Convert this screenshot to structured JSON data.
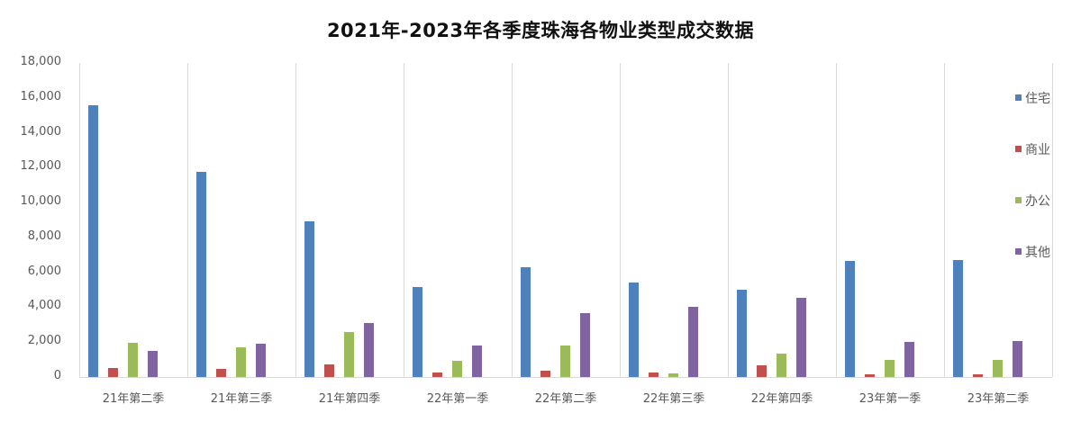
{
  "chart_data": {
    "type": "bar",
    "title": "2021年-2023年各季度珠海各物业类型成交数据",
    "xlabel": "",
    "ylabel": "",
    "ylim": [
      0,
      18000
    ],
    "yticks": [
      0,
      2000,
      4000,
      6000,
      8000,
      10000,
      12000,
      14000,
      16000,
      18000
    ],
    "ytick_labels": [
      "0",
      "2,000",
      "4,000",
      "6,000",
      "8,000",
      "10,000",
      "12,000",
      "14,000",
      "16,000",
      "18,000"
    ],
    "grid": "vertical category separators",
    "legend_position": "right",
    "categories": [
      "21年第二季",
      "21年第三季",
      "21年第四季",
      "22年第一季",
      "22年第二季",
      "22年第三季",
      "22年第四季",
      "23年第一季",
      "23年第二季"
    ],
    "series": [
      {
        "name": "住宅",
        "color": "#4f81bd",
        "values": [
          15560,
          11740,
          8920,
          5140,
          6290,
          5420,
          5000,
          6650,
          6700
        ]
      },
      {
        "name": "商业",
        "color": "#c0504d",
        "values": [
          490,
          450,
          720,
          280,
          380,
          280,
          650,
          170,
          170
        ]
      },
      {
        "name": "办公",
        "color": "#9bbb59",
        "values": [
          1960,
          1720,
          2600,
          930,
          1800,
          190,
          1340,
          970,
          1000
        ]
      },
      {
        "name": "其他",
        "color": "#8064a2",
        "values": [
          1500,
          1900,
          3100,
          1790,
          3650,
          4010,
          4540,
          2010,
          2060
        ]
      }
    ]
  }
}
